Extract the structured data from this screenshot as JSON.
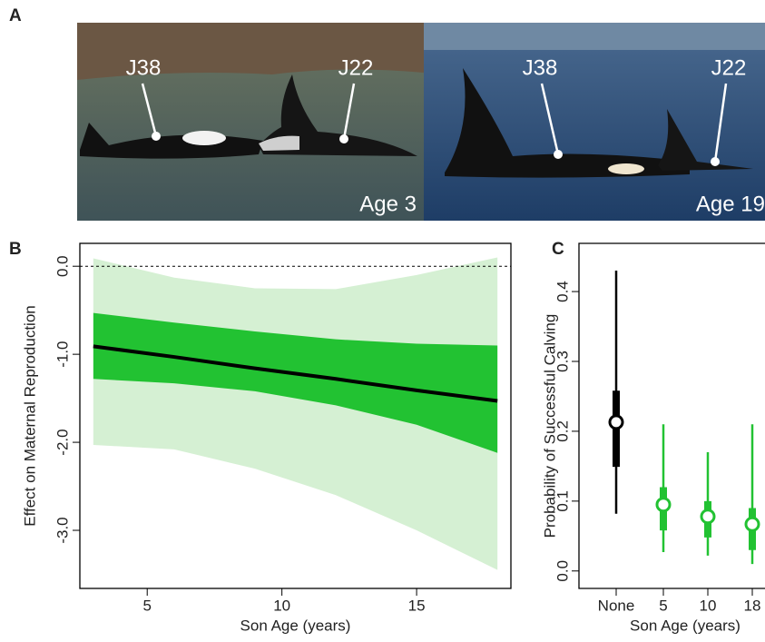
{
  "panel_a": {
    "label": "A",
    "photos": [
      {
        "caption": "Age 3",
        "tags": [
          "J38",
          "J22"
        ]
      },
      {
        "caption": "Age 19",
        "tags": [
          "J38",
          "J22"
        ]
      }
    ]
  },
  "chart_data": [
    {
      "type": "line",
      "panel_label": "B",
      "x_label": "Son Age (years)",
      "y_label": "Effect on Maternal Reproduction",
      "x": [
        3,
        6,
        9,
        12,
        15,
        18
      ],
      "fit": {
        "color": "#000000",
        "values": [
          -0.91,
          -1.03,
          -1.16,
          -1.28,
          -1.41,
          -1.53
        ]
      },
      "band_inner": {
        "color": "#22c232",
        "upper": [
          -0.53,
          -0.64,
          -0.74,
          -0.83,
          -0.88,
          -0.9
        ],
        "lower": [
          -1.28,
          -1.33,
          -1.42,
          -1.58,
          -1.8,
          -2.12
        ]
      },
      "band_outer": {
        "color": "#d5f0d3",
        "upper": [
          0.09,
          -0.13,
          -0.25,
          -0.26,
          -0.1,
          0.1
        ],
        "lower": [
          -2.03,
          -2.08,
          -2.3,
          -2.6,
          -3.0,
          -3.45
        ]
      },
      "reference_line": 0,
      "xlim": [
        2.5,
        18.5
      ],
      "ylim": [
        -3.66,
        0.26
      ],
      "xticks": [
        5,
        10,
        15
      ],
      "yticks": [
        {
          "value": 0,
          "label": "0.0"
        },
        {
          "value": -1,
          "label": "-1.0"
        },
        {
          "value": -2,
          "label": "-2.0"
        },
        {
          "value": -3,
          "label": "-3.0"
        }
      ]
    },
    {
      "type": "pointrange",
      "panel_label": "C",
      "x_label": "Son Age (years)",
      "y_label": "Probability of Successful Calving",
      "categories": [
        "None",
        "5",
        "10",
        "18"
      ],
      "colors": [
        "#000000",
        "#22c232",
        "#22c232",
        "#22c232"
      ],
      "values": [
        0.213,
        0.095,
        0.078,
        0.067
      ],
      "ci50_low": [
        0.149,
        0.058,
        0.048,
        0.03
      ],
      "ci50_high": [
        0.258,
        0.12,
        0.1,
        0.09
      ],
      "ci95_low": [
        0.082,
        0.027,
        0.022,
        0.01
      ],
      "ci95_high": [
        0.43,
        0.21,
        0.17,
        0.21
      ],
      "ylim": [
        -0.025,
        0.469
      ],
      "yticks": [
        {
          "value": 0,
          "label": "0.0"
        },
        0.1,
        0.2,
        0.3,
        0.4
      ]
    }
  ]
}
